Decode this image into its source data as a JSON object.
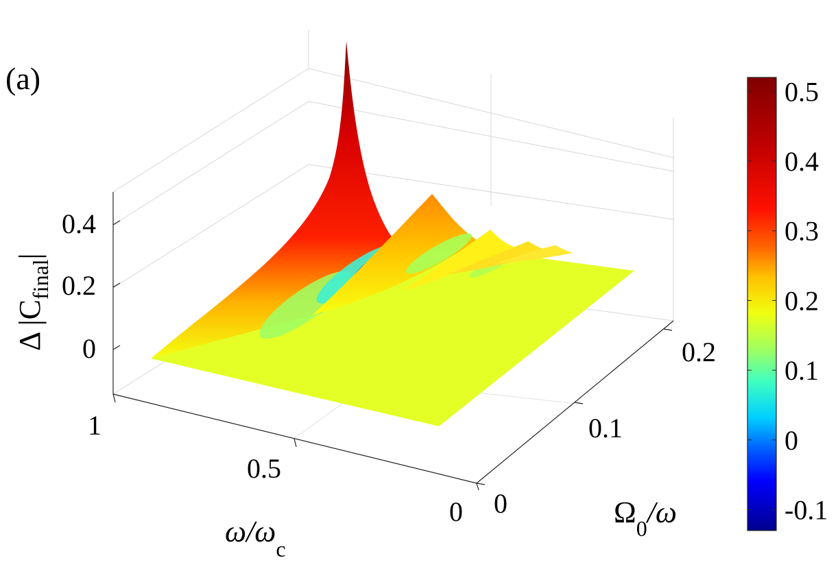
{
  "panel_label": "(a)",
  "chart_data": {
    "type": "surface",
    "zlabel": {
      "main": "Δ |C",
      "sub": "final",
      "tail": "|"
    },
    "xlabel": {
      "main": "ω/ω",
      "sub": "c"
    },
    "ylabel": {
      "main": "Ω",
      "sub": "0",
      "tail": "/ω"
    },
    "x_range": [
      0,
      1
    ],
    "y_range": [
      0,
      0.22
    ],
    "z_range": [
      -0.12,
      0.5
    ],
    "x_ticks": [
      {
        "value": 0,
        "label": "0"
      },
      {
        "value": 0.5,
        "label": "0.5"
      },
      {
        "value": 1,
        "label": "1"
      }
    ],
    "y_ticks": [
      {
        "value": 0,
        "label": "0"
      },
      {
        "value": 0.1,
        "label": "0.1"
      },
      {
        "value": 0.2,
        "label": "0.2"
      }
    ],
    "z_ticks": [
      {
        "value": 0,
        "label": "0"
      },
      {
        "value": 0.2,
        "label": "0.2"
      },
      {
        "value": 0.4,
        "label": "0.4"
      }
    ],
    "colorbar": {
      "range": [
        -0.13,
        0.52
      ],
      "ticks": [
        {
          "value": -0.1,
          "label": "-0.1"
        },
        {
          "value": 0,
          "label": "0"
        },
        {
          "value": 0.1,
          "label": "0.1"
        },
        {
          "value": 0.2,
          "label": "0.2"
        },
        {
          "value": 0.3,
          "label": "0.3"
        },
        {
          "value": 0.4,
          "label": "0.4"
        },
        {
          "value": 0.5,
          "label": "0.5"
        }
      ],
      "colormap": "jet"
    },
    "peak": {
      "x": 1.0,
      "y": 0.0,
      "z": 0.5
    },
    "grid": true
  }
}
